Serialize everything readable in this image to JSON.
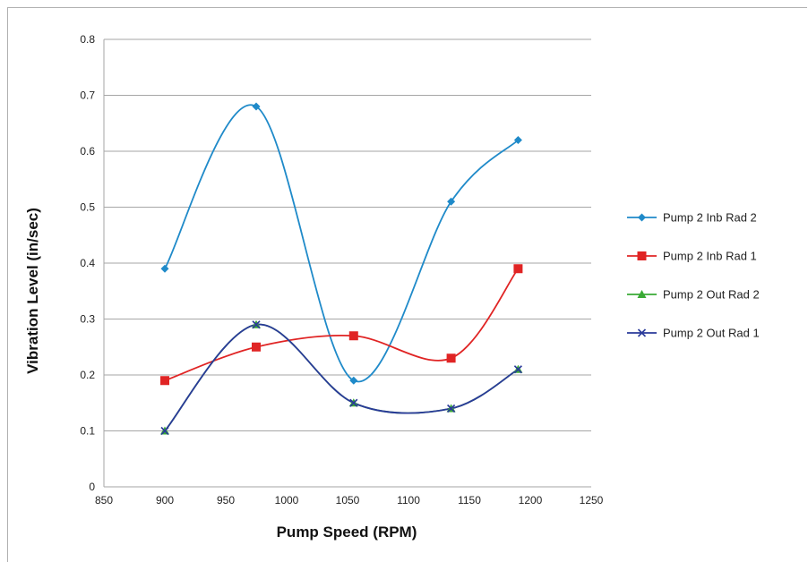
{
  "chart_data": {
    "type": "scatter",
    "title": "",
    "xlabel": "Pump Speed (RPM)",
    "ylabel": "Vibration Level (in/sec)",
    "xlim": [
      850,
      1250
    ],
    "ylim": [
      0,
      0.8
    ],
    "x_ticks": [
      850,
      900,
      950,
      1000,
      1050,
      1100,
      1150,
      1200,
      1250
    ],
    "y_ticks": [
      0,
      0.1,
      0.2,
      0.3,
      0.4,
      0.5,
      0.6,
      0.7,
      0.8
    ],
    "x_tick_labels": [
      "850",
      "900",
      "950",
      "1000",
      "1050",
      "1100",
      "1150",
      "1200",
      "1250"
    ],
    "y_tick_labels": [
      "0",
      "0.1",
      "0.2",
      "0.3",
      "0.4",
      "0.5",
      "0.6",
      "0.7",
      "0.8"
    ],
    "grid": "horizontal",
    "legend_position": "right",
    "smooth_lines": true,
    "series": [
      {
        "name": "Pump 2 Inb Rad 2",
        "color": "#1f8ac9",
        "marker": "diamond",
        "x": [
          900,
          975,
          1055,
          1135,
          1190
        ],
        "y": [
          0.39,
          0.68,
          0.19,
          0.51,
          0.62
        ]
      },
      {
        "name": "Pump 2 Inb Rad 1",
        "color": "#e02424",
        "marker": "square",
        "x": [
          900,
          975,
          1055,
          1135,
          1190
        ],
        "y": [
          0.19,
          0.25,
          0.27,
          0.23,
          0.39
        ]
      },
      {
        "name": "Pump 2 Out Rad 2",
        "color": "#3aaa35",
        "marker": "triangle",
        "x": [
          900,
          975,
          1055,
          1135,
          1190
        ],
        "y": [
          0.1,
          0.29,
          0.15,
          0.14,
          0.21
        ]
      },
      {
        "name": "Pump 2 Out Rad 1",
        "color": "#2a3a9a",
        "marker": "x",
        "x": [
          900,
          975,
          1055,
          1135,
          1190
        ],
        "y": [
          0.1,
          0.29,
          0.15,
          0.14,
          0.21
        ]
      }
    ]
  }
}
